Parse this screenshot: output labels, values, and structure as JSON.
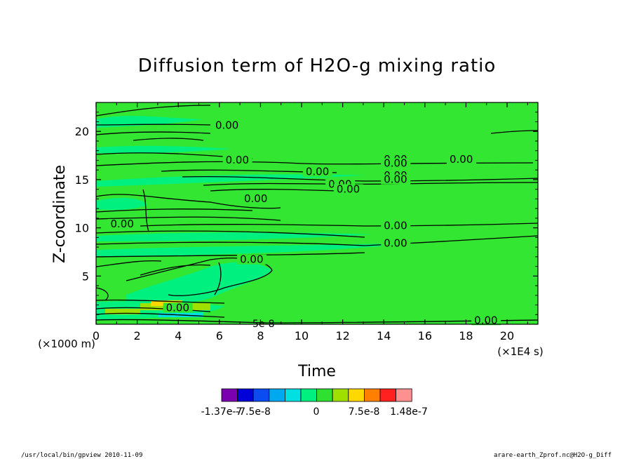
{
  "chart_data": {
    "type": "contour",
    "title": "Diffusion term of H2O-g mixing ratio",
    "xlabel": "Time",
    "ylabel": "Z-coordinate",
    "x_units": "(×1E4 s)",
    "y_units": "(×1000 m)",
    "xlim": [
      0,
      21.5
    ],
    "ylim": [
      0,
      23
    ],
    "x_ticks": [
      "0",
      "2",
      "4",
      "6",
      "8",
      "10",
      "12",
      "14",
      "16",
      "18",
      "20"
    ],
    "y_ticks": [
      "5",
      "10",
      "15",
      "20"
    ],
    "contour_labels": [
      "0.00",
      "0.00",
      "0.00",
      "0.00",
      "0.00",
      "0.00",
      "0.00",
      "0.00",
      "0.00",
      "0.00",
      "0.00",
      "0.00",
      "0.00",
      "0.00",
      "0.00",
      "0.00",
      "0.00"
    ],
    "extra_label": "5e-8",
    "colorbar": {
      "colors": [
        "#7a00b0",
        "#0000d8",
        "#0a4cf0",
        "#00a8f0",
        "#00e0e0",
        "#00f080",
        "#30e030",
        "#a0e000",
        "#ffd800",
        "#ff8000",
        "#ff2020",
        "#ff9090"
      ],
      "labels": [
        "-1.37e-7",
        "-7.5e-8",
        "0",
        "7.5e-8",
        "1.48e-7"
      ]
    }
  },
  "footer": {
    "left": "/usr/local/bin/gpview   2010-11-09",
    "right": "arare-earth_Zprof.nc@H2O-g_Diff"
  }
}
